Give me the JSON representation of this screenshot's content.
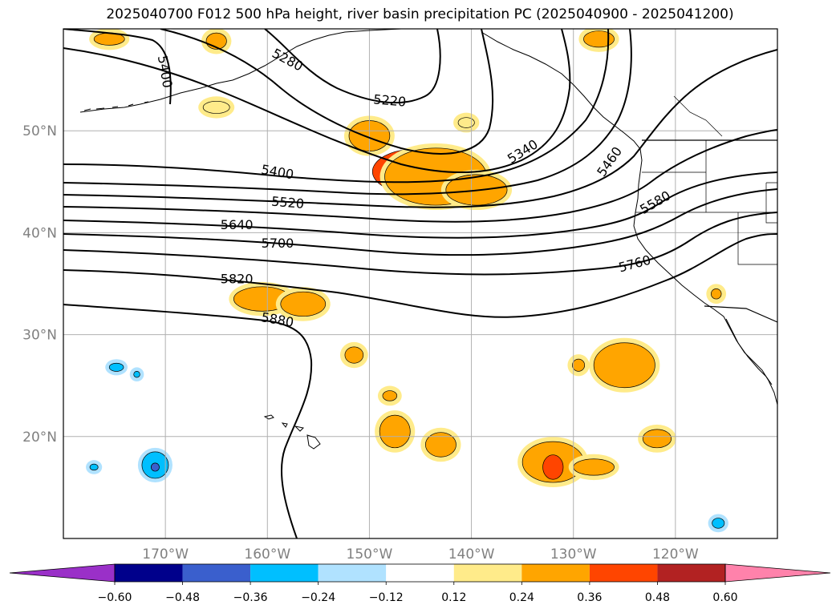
{
  "title": "2025040700 F012 500 hPa height, river basin precipitation PC (2025040900 - 2025041200)",
  "map": {
    "lon_range": [
      -180,
      -110
    ],
    "lat_range": [
      10,
      60
    ],
    "lat_ticks": [
      {
        "value": 50,
        "label": "50°N"
      },
      {
        "value": 40,
        "label": "40°N"
      },
      {
        "value": 30,
        "label": "30°N"
      },
      {
        "value": 20,
        "label": "20°N"
      }
    ],
    "lon_ticks": [
      {
        "value": -170,
        "label": "170°W"
      },
      {
        "value": -160,
        "label": "160°W"
      },
      {
        "value": -150,
        "label": "150°W"
      },
      {
        "value": -140,
        "label": "140°W"
      },
      {
        "value": -130,
        "label": "130°W"
      },
      {
        "value": -120,
        "label": "120°W"
      }
    ],
    "grid": true,
    "contour_labels": [
      {
        "text": "5280",
        "lon": -158.0,
        "lat": 57.0,
        "rot": 28
      },
      {
        "text": "5400",
        "lon": -170.0,
        "lat": 55.8,
        "rot": 80
      },
      {
        "text": "5220",
        "lon": -148.0,
        "lat": 53.0,
        "rot": 5
      },
      {
        "text": "5340",
        "lon": -135.0,
        "lat": 48.0,
        "rot": -32
      },
      {
        "text": "5460",
        "lon": -126.5,
        "lat": 47.0,
        "rot": -55
      },
      {
        "text": "5400",
        "lon": -159.0,
        "lat": 46.0,
        "rot": 10
      },
      {
        "text": "5520",
        "lon": -158.0,
        "lat": 43.0,
        "rot": 5
      },
      {
        "text": "5580",
        "lon": -122.0,
        "lat": 43.0,
        "rot": -30
      },
      {
        "text": "5640",
        "lon": -163.0,
        "lat": 40.8,
        "rot": 0
      },
      {
        "text": "5700",
        "lon": -159.0,
        "lat": 39.0,
        "rot": 0
      },
      {
        "text": "5760",
        "lon": -124.0,
        "lat": 37.0,
        "rot": -15
      },
      {
        "text": "5820",
        "lon": -163.0,
        "lat": 35.5,
        "rot": 0
      },
      {
        "text": "5880",
        "lon": -159.0,
        "lat": 31.5,
        "rot": 10
      }
    ],
    "precip_patches": [
      {
        "lon": -145.5,
        "lat": 46.0,
        "rx": 4.2,
        "ry": 2.2,
        "level": 0.36
      },
      {
        "lon": -143.5,
        "lat": 45.5,
        "rx": 5.0,
        "ry": 2.8,
        "level": 0.24
      },
      {
        "lon": -139.5,
        "lat": 44.2,
        "rx": 3.0,
        "ry": 1.5,
        "level": 0.24
      },
      {
        "lon": -150.0,
        "lat": 49.5,
        "rx": 2.0,
        "ry": 1.5,
        "level": 0.24
      },
      {
        "lon": -160.5,
        "lat": 33.5,
        "rx": 2.8,
        "ry": 1.2,
        "level": 0.24
      },
      {
        "lon": -156.5,
        "lat": 33.0,
        "rx": 2.2,
        "ry": 1.2,
        "level": 0.24
      },
      {
        "lon": -175.5,
        "lat": 59.0,
        "rx": 1.5,
        "ry": 0.6,
        "level": 0.24
      },
      {
        "lon": -165.0,
        "lat": 58.8,
        "rx": 1.0,
        "ry": 0.8,
        "level": 0.24
      },
      {
        "lon": -165.0,
        "lat": 52.3,
        "rx": 1.3,
        "ry": 0.6,
        "level": 0.12
      },
      {
        "lon": -140.5,
        "lat": 50.8,
        "rx": 0.8,
        "ry": 0.5,
        "level": 0.12
      },
      {
        "lon": -127.5,
        "lat": 59.0,
        "rx": 1.5,
        "ry": 0.8,
        "level": 0.24
      },
      {
        "lon": -132.0,
        "lat": 17.5,
        "rx": 3.0,
        "ry": 2.0,
        "level": 0.24
      },
      {
        "lon": -132.0,
        "lat": 17.0,
        "rx": 1.0,
        "ry": 1.2,
        "level": 0.36
      },
      {
        "lon": -128.0,
        "lat": 17.0,
        "rx": 2.0,
        "ry": 0.8,
        "level": 0.24
      },
      {
        "lon": -125.0,
        "lat": 27.0,
        "rx": 3.0,
        "ry": 2.2,
        "level": 0.24
      },
      {
        "lon": -121.8,
        "lat": 19.8,
        "rx": 1.4,
        "ry": 0.9,
        "level": 0.24
      },
      {
        "lon": -151.5,
        "lat": 28.0,
        "rx": 0.9,
        "ry": 0.8,
        "level": 0.24
      },
      {
        "lon": -147.5,
        "lat": 20.5,
        "rx": 1.5,
        "ry": 1.6,
        "level": 0.24
      },
      {
        "lon": -143.0,
        "lat": 19.2,
        "rx": 1.5,
        "ry": 1.2,
        "level": 0.24
      },
      {
        "lon": -148.0,
        "lat": 24.0,
        "rx": 0.7,
        "ry": 0.5,
        "level": 0.24
      },
      {
        "lon": -129.5,
        "lat": 27.0,
        "rx": 0.6,
        "ry": 0.6,
        "level": 0.24
      },
      {
        "lon": -116.0,
        "lat": 34.0,
        "rx": 0.5,
        "ry": 0.5,
        "level": 0.24
      },
      {
        "lon": -171.0,
        "lat": 17.2,
        "rx": 1.3,
        "ry": 1.3,
        "level": -0.24
      },
      {
        "lon": -171.0,
        "lat": 17.0,
        "rx": 0.4,
        "ry": 0.4,
        "level": -0.36
      },
      {
        "lon": -174.8,
        "lat": 26.8,
        "rx": 0.7,
        "ry": 0.4,
        "level": -0.24
      },
      {
        "lon": -172.8,
        "lat": 26.1,
        "rx": 0.3,
        "ry": 0.3,
        "level": -0.24
      },
      {
        "lon": -177.0,
        "lat": 17.0,
        "rx": 0.4,
        "ry": 0.3,
        "level": -0.24
      },
      {
        "lon": -115.8,
        "lat": 11.5,
        "rx": 0.6,
        "ry": 0.5,
        "level": -0.24
      }
    ]
  },
  "colorbar": {
    "ticks": [
      "−0.60",
      "−0.48",
      "−0.36",
      "−0.24",
      "−0.12",
      "0.12",
      "0.24",
      "0.36",
      "0.48",
      "0.60"
    ],
    "colors": [
      "#9a30c8",
      "#00008b",
      "#3a5fcd",
      "#00bfff",
      "#b0e2ff",
      "#ffffff",
      "#ffeb8a",
      "#ffa500",
      "#ff4500",
      "#b22222",
      "#ff82ab",
      "#ff82ab"
    ],
    "under_color": "#9a30c8",
    "over_color": "#ff82ab"
  },
  "level_colors": {
    "0.12": "#ffeb8a",
    "0.24": "#ffa500",
    "0.36": "#ff4500",
    "-0.24": "#00bfff",
    "-0.36": "#3a5fcd"
  }
}
